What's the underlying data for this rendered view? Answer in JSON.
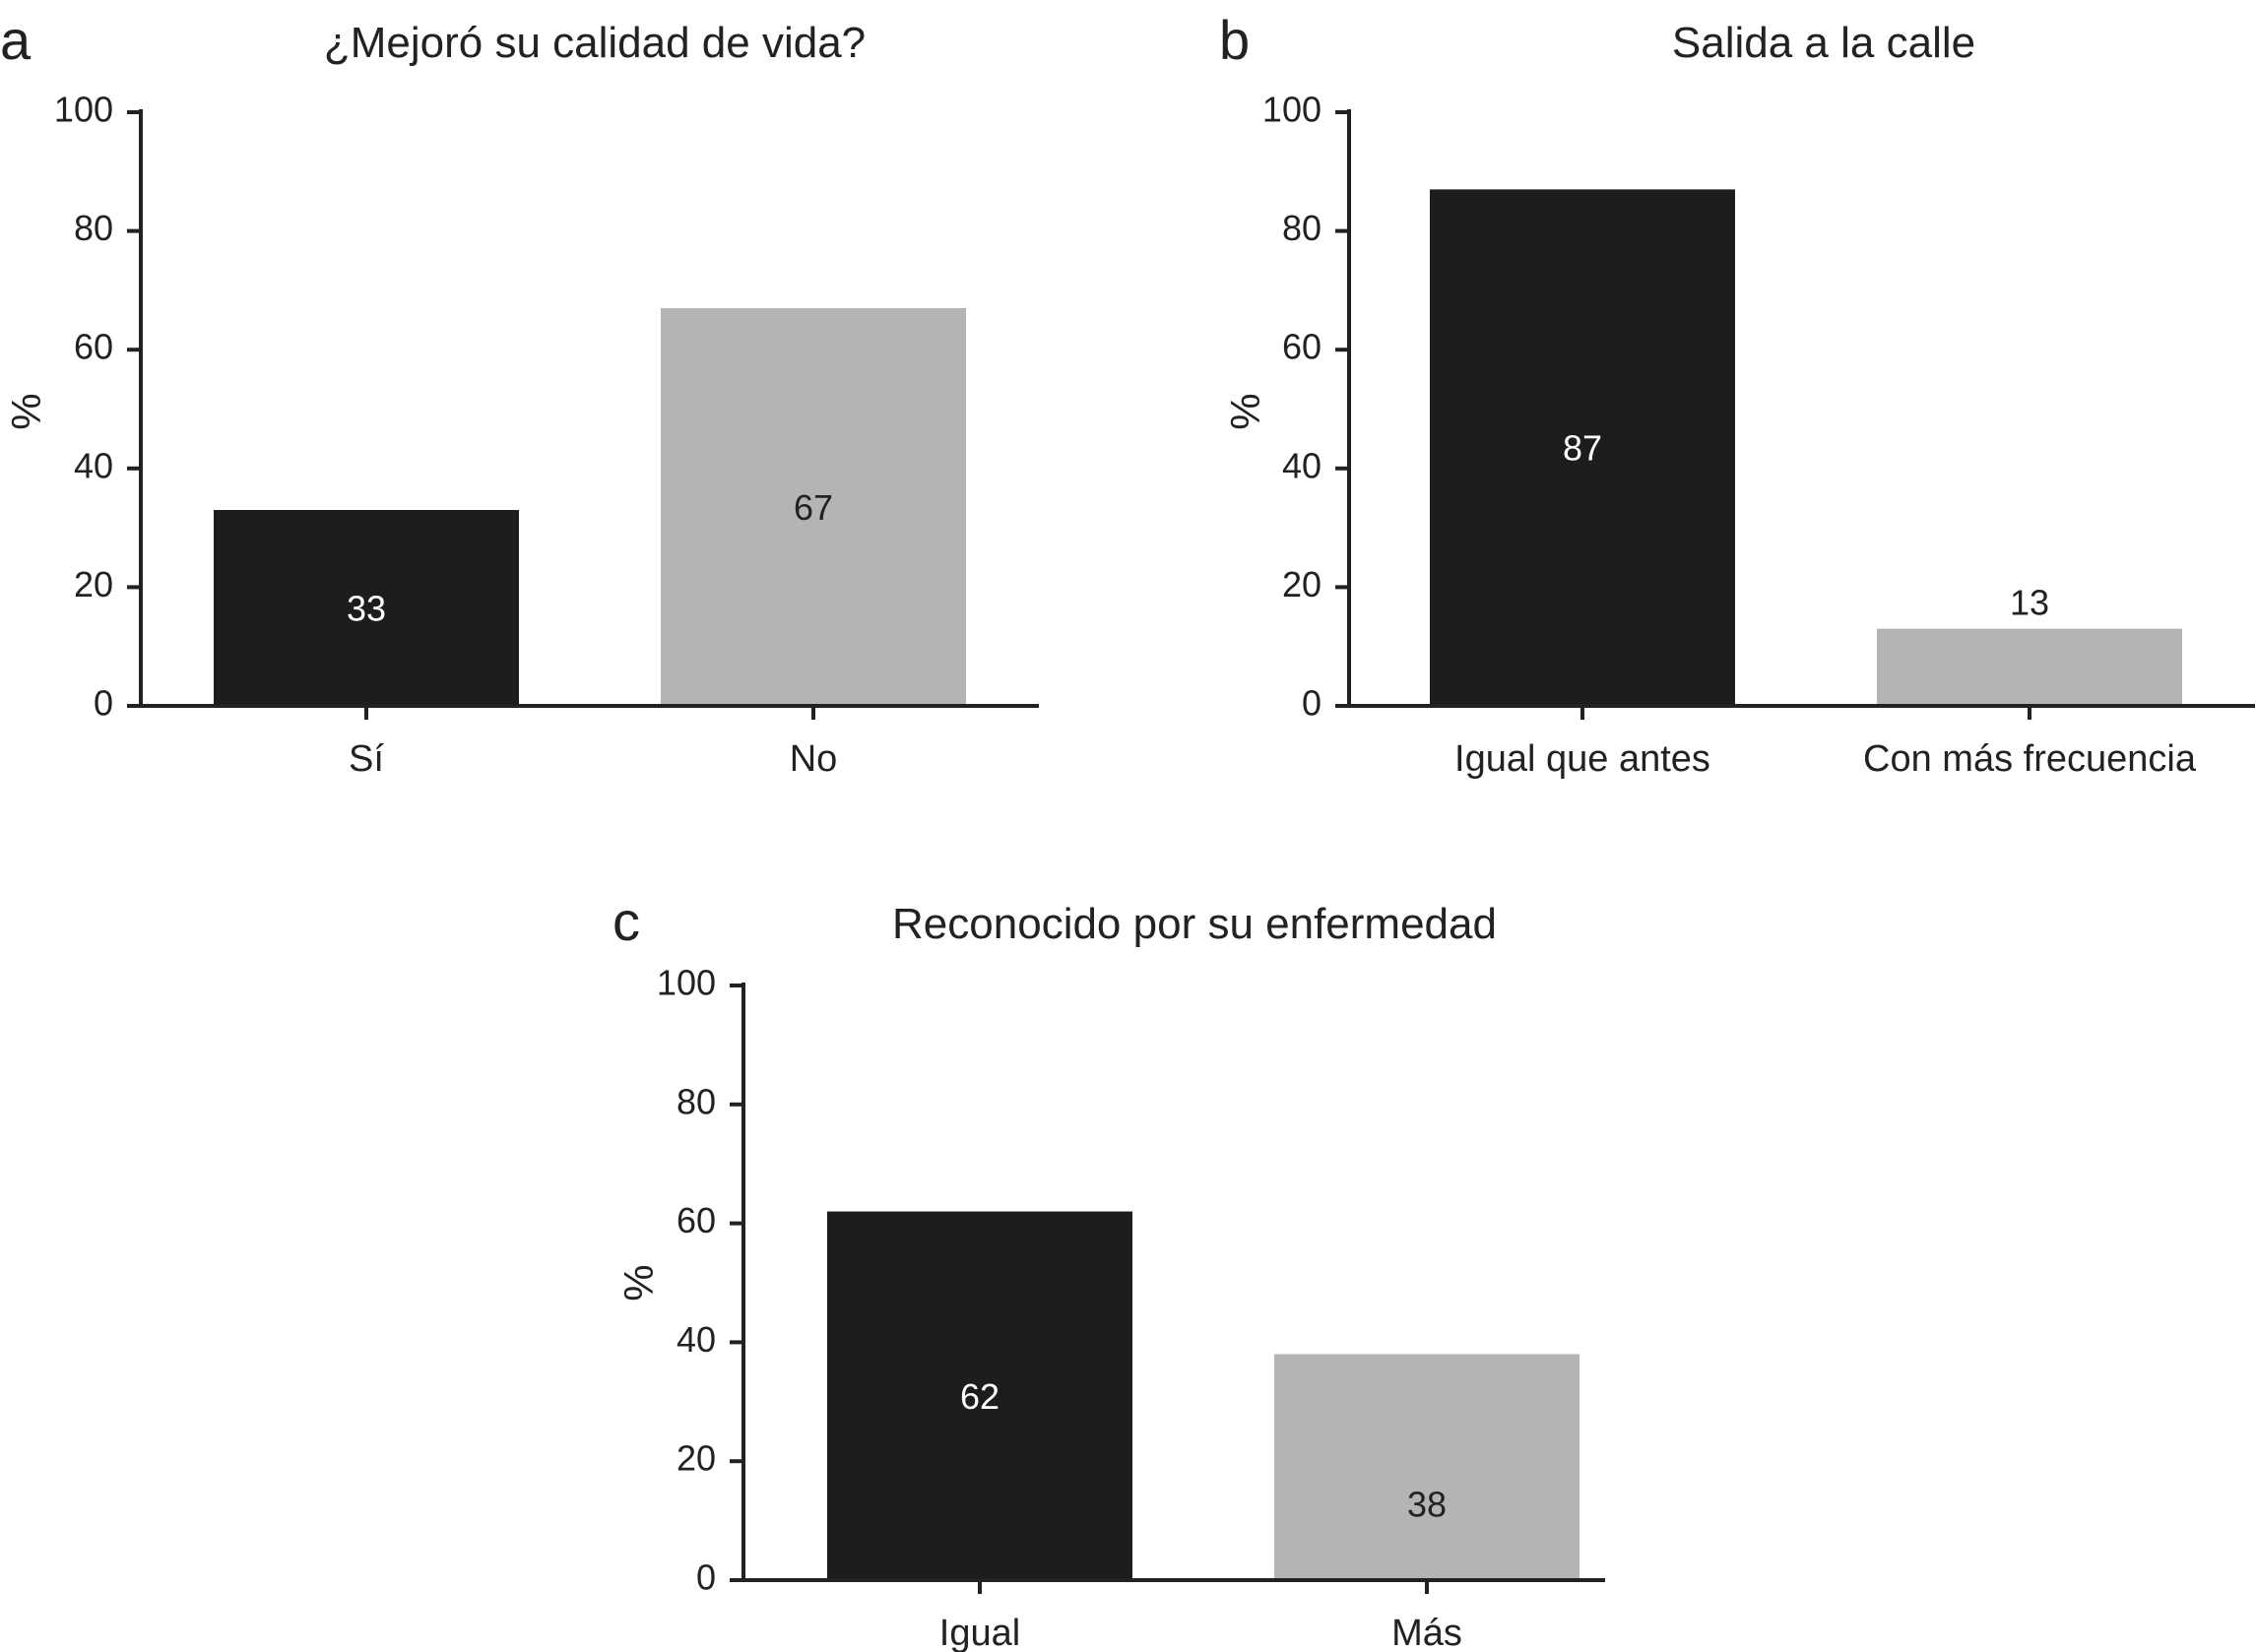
{
  "chart_data": [
    {
      "type": "bar",
      "panel_label": "a",
      "title": "¿Mejoró su calidad de vida?",
      "ylabel": "%",
      "ylim": [
        0,
        100
      ],
      "yticks": [
        "0",
        "20",
        "40",
        "60",
        "80",
        "100"
      ],
      "categories": [
        "Sí",
        "No"
      ],
      "values": [
        33,
        67
      ],
      "value_labels": [
        "33",
        "67"
      ],
      "colors": [
        "#1f1c1c",
        "#b4b4b4"
      ],
      "label_colors": [
        "#ffffff",
        "#222222"
      ]
    },
    {
      "type": "bar",
      "panel_label": "b",
      "title": "Salida a la calle",
      "ylabel": "%",
      "ylim": [
        0,
        100
      ],
      "yticks": [
        "0",
        "20",
        "40",
        "60",
        "80",
        "100"
      ],
      "categories": [
        "Igual que antes",
        "Con más frecuencia"
      ],
      "values": [
        87,
        13
      ],
      "value_labels": [
        "87",
        "13"
      ],
      "colors": [
        "#1f1c1c",
        "#b4b4b4"
      ],
      "label_colors": [
        "#ffffff",
        "#222222"
      ]
    },
    {
      "type": "bar",
      "panel_label": "c",
      "title": "Reconocido por su enfermedad",
      "ylabel": "%",
      "ylim": [
        0,
        100
      ],
      "yticks": [
        "0",
        "20",
        "40",
        "60",
        "80",
        "100"
      ],
      "categories": [
        "Igual",
        "Más"
      ],
      "values": [
        62,
        38
      ],
      "value_labels": [
        "62",
        "38"
      ],
      "colors": [
        "#1f1c1c",
        "#b4b4b4"
      ],
      "label_colors": [
        "#ffffff",
        "#222222"
      ]
    }
  ]
}
